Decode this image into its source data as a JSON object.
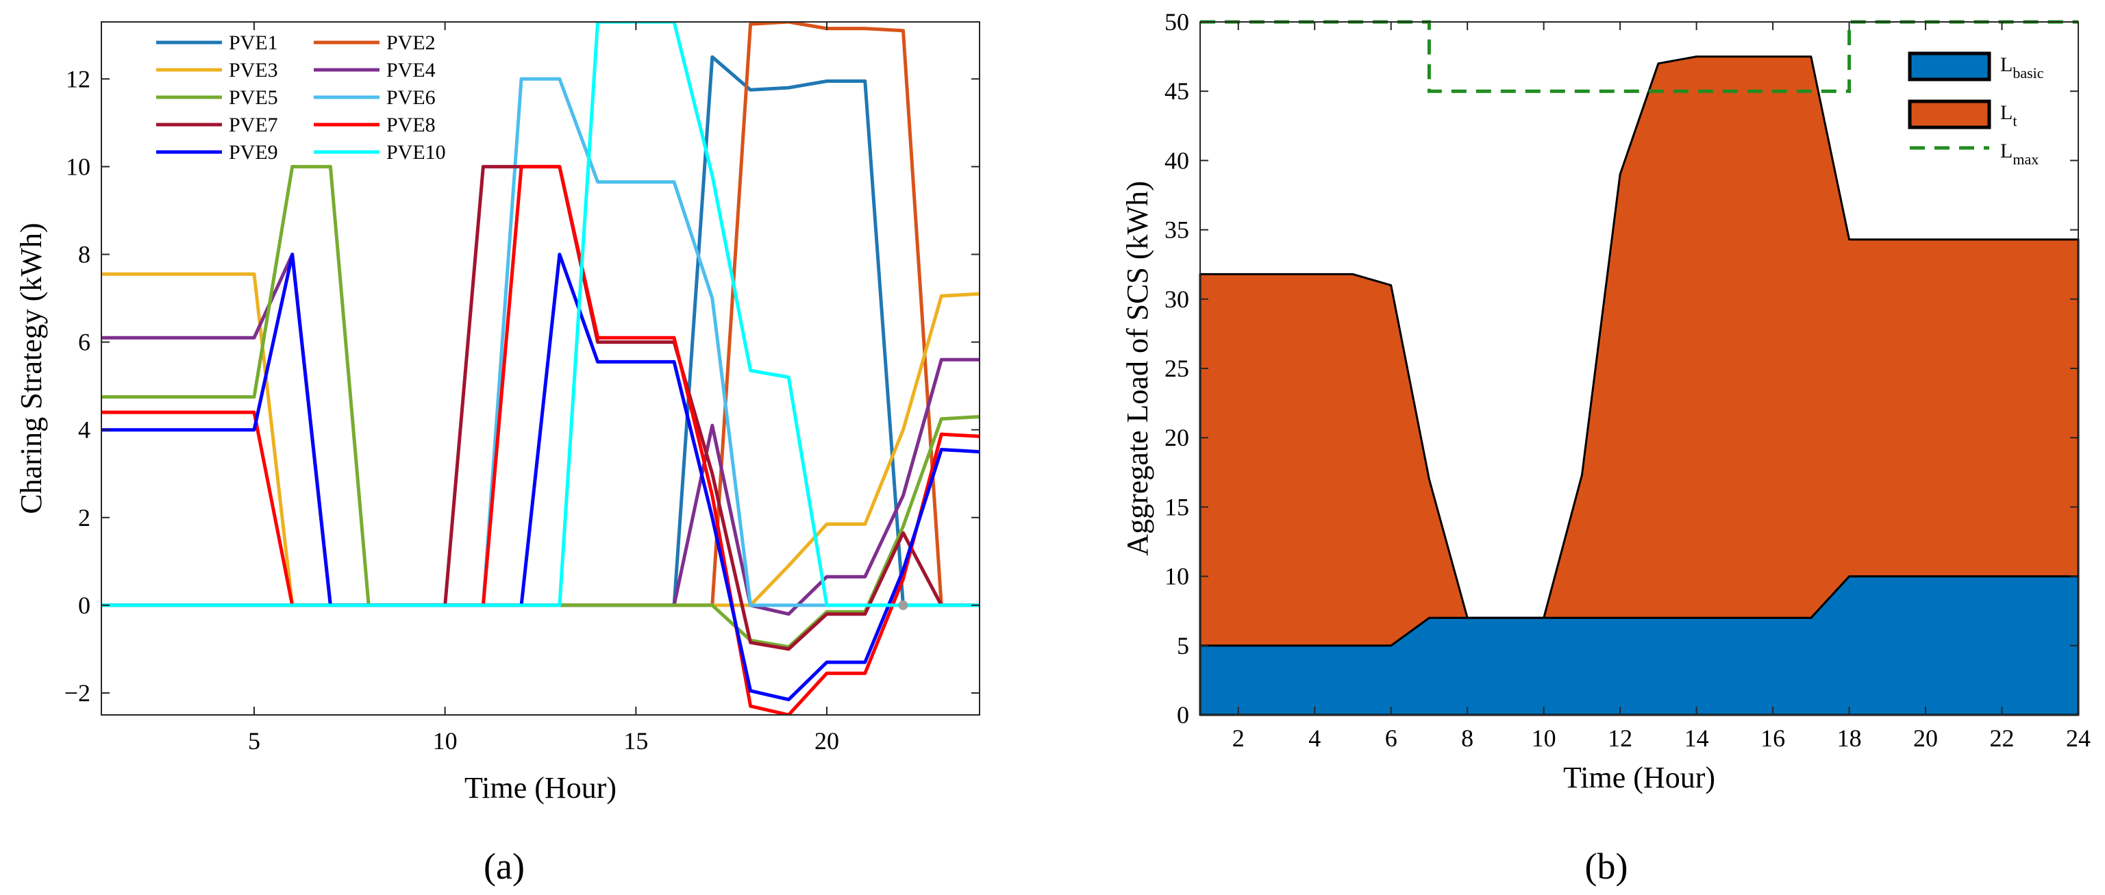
{
  "chart_data": [
    {
      "type": "line",
      "panel_label": "(a)",
      "xlabel": "Time (Hour)",
      "ylabel": "Charing Strategy (kWh)",
      "xlim": [
        1,
        24
      ],
      "ylim": [
        -2.5,
        13.3
      ],
      "xticks": [
        5,
        10,
        15,
        20
      ],
      "yticks": [
        -2,
        0,
        2,
        4,
        6,
        8,
        10,
        12
      ],
      "ytick_labels": [
        "−2",
        "0",
        "2",
        "4",
        "6",
        "8",
        "10",
        "12"
      ],
      "legend_position": "top-left",
      "x": [
        1,
        2,
        3,
        4,
        5,
        6,
        7,
        8,
        9,
        10,
        11,
        12,
        13,
        14,
        15,
        16,
        17,
        18,
        19,
        20,
        21,
        22,
        23,
        24
      ],
      "series": [
        {
          "name": "PVE1",
          "color": "#1f78b4",
          "values": [
            0,
            0,
            0,
            0,
            0,
            0,
            0,
            0,
            0,
            0,
            0,
            0,
            0,
            0,
            0,
            0,
            12.5,
            11.75,
            11.8,
            11.95,
            11.95,
            0,
            0,
            0
          ]
        },
        {
          "name": "PVE2",
          "color": "#d95319",
          "values": [
            0,
            0,
            0,
            0,
            0,
            0,
            0,
            0,
            0,
            0,
            0,
            0,
            0,
            0,
            0,
            0,
            0,
            13.25,
            13.3,
            13.15,
            13.15,
            13.1,
            0,
            0
          ]
        },
        {
          "name": "PVE3",
          "color": "#edb120",
          "values": [
            7.55,
            7.55,
            7.55,
            7.55,
            7.55,
            0,
            0,
            0,
            0,
            0,
            0,
            0,
            0,
            0,
            0,
            0,
            0,
            0,
            0.9,
            1.85,
            1.85,
            4.0,
            7.05,
            7.1
          ]
        },
        {
          "name": "PVE4",
          "color": "#7e2f8e",
          "values": [
            6.1,
            6.1,
            6.1,
            6.1,
            6.1,
            8.0,
            0,
            0,
            0,
            0,
            0,
            0,
            0,
            0,
            0,
            0,
            4.1,
            0,
            -0.2,
            0.65,
            0.65,
            2.5,
            5.6,
            5.6
          ]
        },
        {
          "name": "PVE5",
          "color": "#77ac30",
          "values": [
            4.75,
            4.75,
            4.75,
            4.75,
            4.75,
            10.0,
            10.0,
            0,
            0,
            0,
            0,
            0,
            0,
            0,
            0,
            0,
            0,
            -0.8,
            -0.95,
            -0.15,
            -0.15,
            1.8,
            4.25,
            4.3
          ]
        },
        {
          "name": "PVE6",
          "color": "#4dbeee",
          "values": [
            0,
            0,
            0,
            0,
            0,
            0,
            0,
            0,
            0,
            0,
            0,
            12.0,
            12.0,
            9.65,
            9.65,
            9.65,
            7.0,
            0,
            0,
            0,
            0,
            0,
            0,
            0
          ]
        },
        {
          "name": "PVE7",
          "color": "#a2142f",
          "values": [
            0,
            0,
            0,
            0,
            0,
            0,
            0,
            0,
            0,
            0,
            10.0,
            10.0,
            10.0,
            6.0,
            6.0,
            6.0,
            3.0,
            -0.85,
            -1.0,
            -0.2,
            -0.2,
            1.65,
            0,
            0
          ]
        },
        {
          "name": "PVE8",
          "color": "#ff0000",
          "values": [
            4.4,
            4.4,
            4.4,
            4.4,
            4.4,
            0,
            0,
            0,
            0,
            0,
            0,
            10.0,
            10.0,
            6.1,
            6.1,
            6.1,
            2.5,
            -2.3,
            -2.5,
            -1.55,
            -1.55,
            0.6,
            3.9,
            3.85
          ]
        },
        {
          "name": "PVE9",
          "color": "#0000ff",
          "values": [
            4.0,
            4.0,
            4.0,
            4.0,
            4.0,
            8.0,
            0,
            0,
            0,
            0,
            0,
            0,
            8.0,
            5.55,
            5.55,
            5.55,
            2.0,
            -1.95,
            -2.15,
            -1.3,
            -1.3,
            0.8,
            3.55,
            3.5
          ]
        },
        {
          "name": "PVE10",
          "color": "#00ffff",
          "values": [
            0,
            0,
            0,
            0,
            0,
            0,
            0,
            0,
            0,
            0,
            0,
            0,
            0,
            13.3,
            13.3,
            13.3,
            9.8,
            5.35,
            5.2,
            0,
            0,
            0,
            0,
            0
          ]
        }
      ]
    },
    {
      "type": "area",
      "panel_label": "(b)",
      "xlabel": "Time (Hour)",
      "ylabel": "Aggregate Load of SCS (kWh)",
      "xlim": [
        1,
        24
      ],
      "ylim": [
        0,
        50
      ],
      "xticks": [
        2,
        4,
        6,
        8,
        10,
        12,
        14,
        16,
        18,
        20,
        22,
        24
      ],
      "yticks": [
        0,
        5,
        10,
        15,
        20,
        25,
        30,
        35,
        40,
        45,
        50
      ],
      "legend_position": "top-right",
      "x": [
        1,
        2,
        3,
        4,
        5,
        6,
        7,
        8,
        9,
        10,
        11,
        12,
        13,
        14,
        15,
        16,
        17,
        18,
        19,
        20,
        21,
        22,
        23,
        24
      ],
      "series": [
        {
          "name": "L",
          "subscript": "basic",
          "color": "#0072bd",
          "values": [
            5,
            5,
            5,
            5,
            5,
            5,
            7,
            7,
            7,
            7,
            7,
            7,
            7,
            7,
            7,
            7,
            7,
            10,
            10,
            10,
            10,
            10,
            10,
            10
          ]
        },
        {
          "name": "L",
          "subscript": "t",
          "color": "#d95319",
          "values": [
            26.8,
            26.8,
            26.8,
            26.8,
            26.8,
            26.0,
            10.0,
            0,
            0,
            0,
            10.3,
            32.0,
            40.0,
            40.5,
            40.5,
            40.5,
            40.5,
            24.3,
            24.3,
            24.3,
            24.3,
            24.3,
            24.3,
            24.3
          ]
        },
        {
          "name": "L",
          "subscript": "max",
          "color": "#218c21",
          "style": "dashed",
          "x": [
            1,
            7,
            7,
            18,
            18,
            24
          ],
          "values": [
            50,
            50,
            45,
            45,
            50,
            50
          ]
        }
      ]
    }
  ]
}
